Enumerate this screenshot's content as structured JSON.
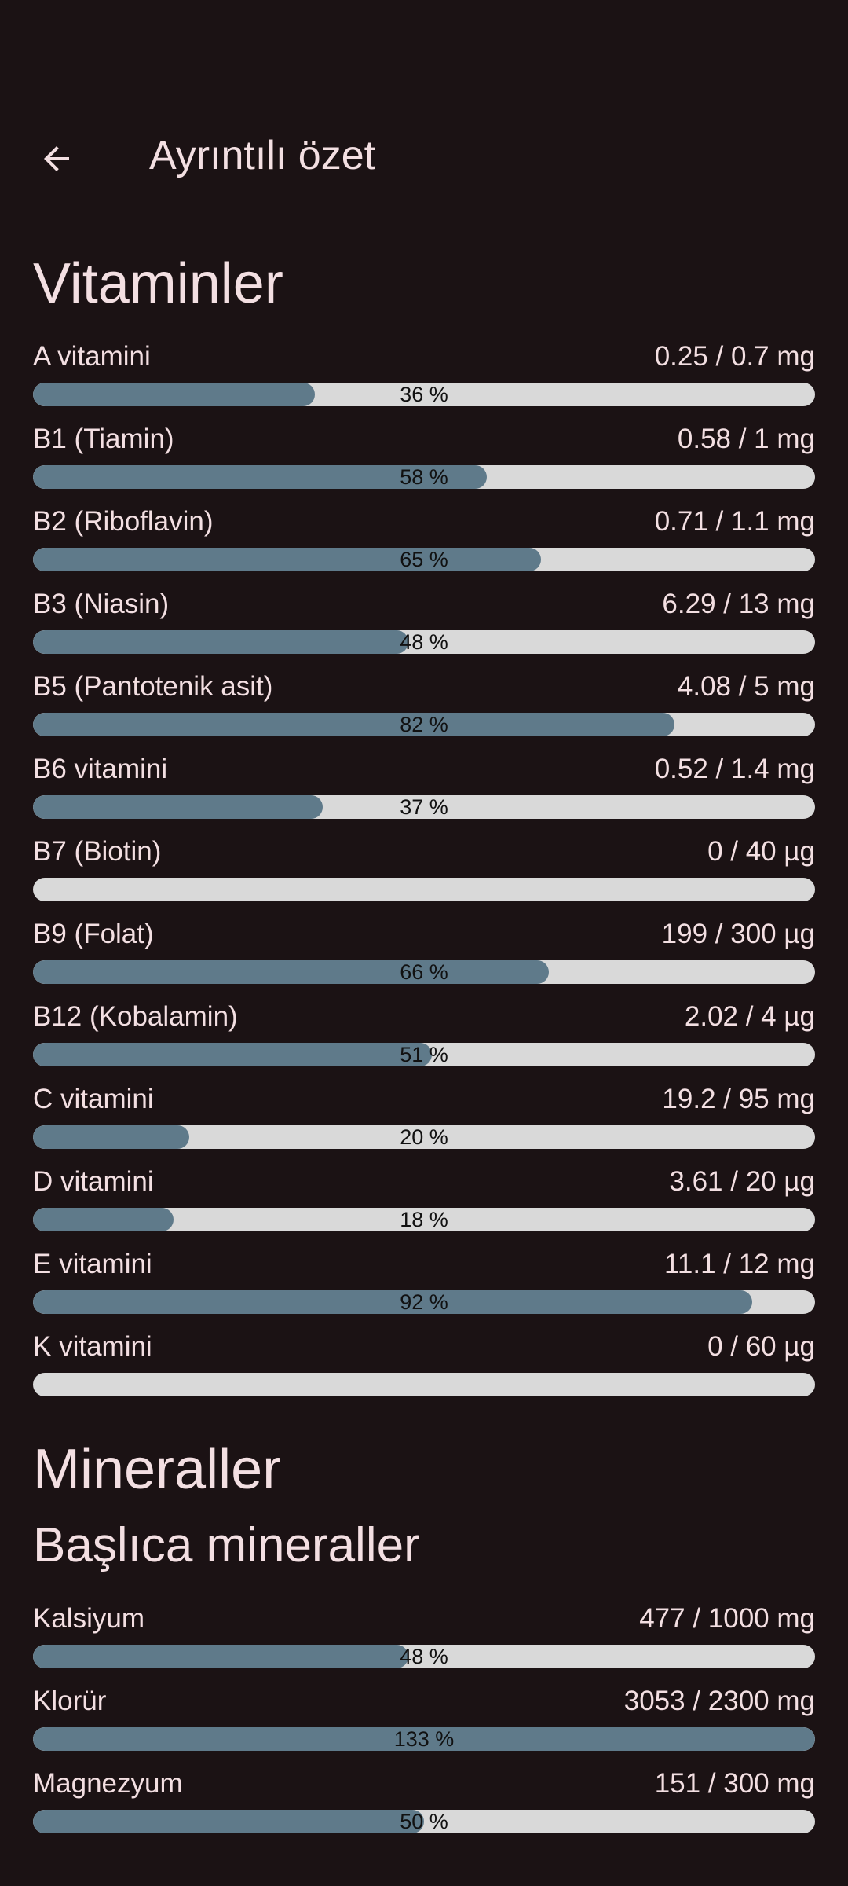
{
  "header": {
    "title": "Ayrıntılı özet"
  },
  "vitamins": {
    "title": "Vitaminler",
    "items": [
      {
        "name": "A vitamini",
        "amount": "0.25 / 0.7 mg",
        "percent": 36,
        "label": "36 %"
      },
      {
        "name": "B1 (Tiamin)",
        "amount": "0.58 / 1 mg",
        "percent": 58,
        "label": "58 %"
      },
      {
        "name": "B2 (Riboflavin)",
        "amount": "0.71 / 1.1 mg",
        "percent": 65,
        "label": "65 %"
      },
      {
        "name": "B3 (Niasin)",
        "amount": "6.29 / 13 mg",
        "percent": 48,
        "label": "48 %"
      },
      {
        "name": "B5 (Pantotenik asit)",
        "amount": "4.08 / 5 mg",
        "percent": 82,
        "label": "82 %"
      },
      {
        "name": "B6 vitamini",
        "amount": "0.52 / 1.4 mg",
        "percent": 37,
        "label": "37 %"
      },
      {
        "name": "B7 (Biotin)",
        "amount": "0 / 40 µg",
        "percent": 0,
        "label": ""
      },
      {
        "name": "B9 (Folat)",
        "amount": "199 / 300 µg",
        "percent": 66,
        "label": "66 %"
      },
      {
        "name": "B12 (Kobalamin)",
        "amount": "2.02 / 4 µg",
        "percent": 51,
        "label": "51 %"
      },
      {
        "name": "C vitamini",
        "amount": "19.2 / 95 mg",
        "percent": 20,
        "label": "20 %"
      },
      {
        "name": "D vitamini",
        "amount": "3.61 / 20 µg",
        "percent": 18,
        "label": "18 %"
      },
      {
        "name": "E vitamini",
        "amount": "11.1 / 12 mg",
        "percent": 92,
        "label": "92 %"
      },
      {
        "name": "K vitamini",
        "amount": "0 / 60 µg",
        "percent": 0,
        "label": ""
      }
    ]
  },
  "minerals": {
    "title": "Mineraller",
    "subtitle": "Başlıca mineraller",
    "items": [
      {
        "name": "Kalsiyum",
        "amount": "477 / 1000 mg",
        "percent": 48,
        "label": "48 %"
      },
      {
        "name": "Klorür",
        "amount": "3053 / 2300 mg",
        "percent": 133,
        "label": "133 %"
      },
      {
        "name": "Magnezyum",
        "amount": "151 / 300 mg",
        "percent": 50,
        "label": "50 %"
      }
    ]
  },
  "colors": {
    "background": "#1b1214",
    "text": "#f3dfe2",
    "bar_track": "#d9d9d9",
    "bar_fill": "#5f7a8a"
  },
  "icons": {
    "back": "arrow-left-icon"
  }
}
